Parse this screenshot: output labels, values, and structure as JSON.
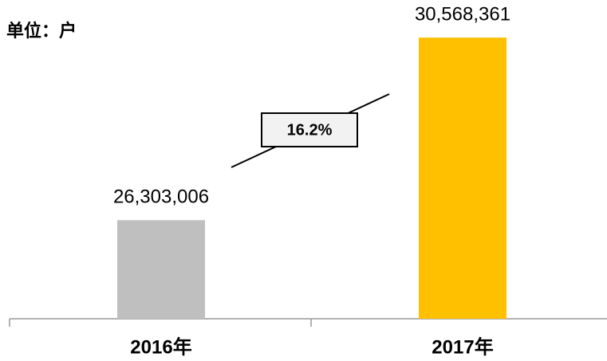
{
  "chart_data": {
    "type": "bar",
    "ylabel": "单位：户",
    "categories": [
      "2016年",
      "2017年"
    ],
    "values": [
      26303006,
      30568361
    ],
    "value_labels": [
      "26,303,006",
      "30,568,361"
    ],
    "colors": [
      "#bfbfbf",
      "#ffc000"
    ],
    "ylim": [
      24000000,
      31000000
    ],
    "annotation": "16.2%"
  }
}
